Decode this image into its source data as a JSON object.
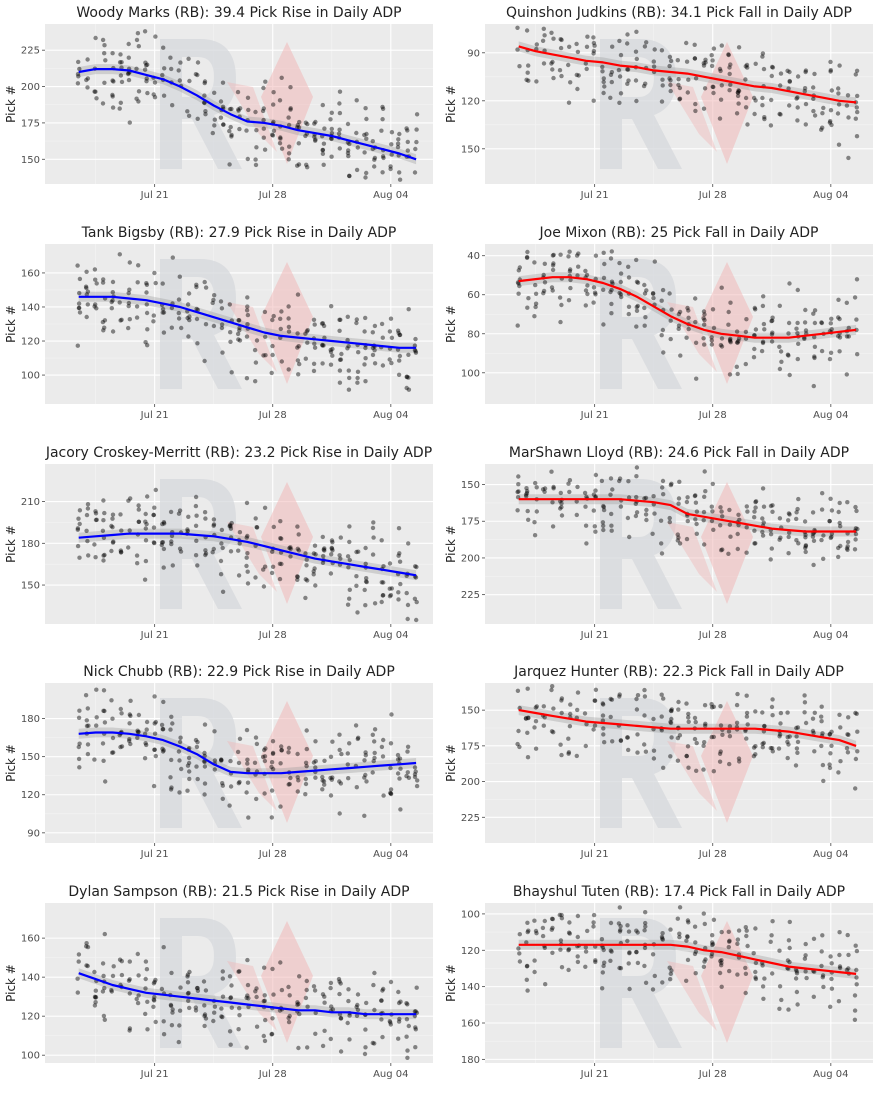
{
  "chart_data": [
    {
      "type": "scatter",
      "title": "Woody Marks (RB): 39.4 Pick Rise in Daily ADP",
      "ylabel": "Pick #",
      "xlabel": "",
      "x_ticks": [
        "Jul 21",
        "Jul 28",
        "Aug 04"
      ],
      "y_ticks": [
        150,
        175,
        200,
        225
      ],
      "ylim": [
        243,
        133
      ],
      "trend": "rise",
      "color": "#0000ff",
      "series": [
        {
          "name": "",
          "x": [
            0,
            2,
            4,
            6,
            8,
            10,
            12,
            14,
            16,
            18,
            20,
            22,
            24,
            26,
            28,
            30,
            32,
            34,
            36,
            38,
            40
          ],
          "y": [
            210,
            212,
            212,
            211,
            208,
            205,
            200,
            194,
            187,
            181,
            176,
            175,
            173,
            170,
            168,
            166,
            163,
            160,
            157,
            154,
            150
          ]
        }
      ]
    },
    {
      "type": "scatter",
      "title": "Quinshon Judkins (RB): 34.1 Pick Fall in Daily ADP",
      "ylabel": "Pick #",
      "xlabel": "",
      "x_ticks": [
        "Jul 21",
        "Jul 28",
        "Aug 04"
      ],
      "y_ticks": [
        90,
        120,
        150
      ],
      "ylim": [
        72,
        172
      ],
      "trend": "fall",
      "color": "#ff0000",
      "series": [
        {
          "name": "",
          "x": [
            0,
            2,
            4,
            6,
            8,
            10,
            12,
            14,
            16,
            18,
            20,
            22,
            24,
            26,
            28,
            30,
            32,
            34,
            36,
            38,
            40
          ],
          "y": [
            86,
            89,
            91,
            93,
            95,
            96,
            98,
            99,
            101,
            102,
            103,
            105,
            107,
            109,
            111,
            112,
            114,
            116,
            118,
            120,
            121
          ]
        }
      ]
    },
    {
      "type": "scatter",
      "title": "Tank Bigsby (RB): 27.9 Pick Rise in Daily ADP",
      "ylabel": "Pick #",
      "xlabel": "",
      "x_ticks": [
        "Jul 21",
        "Jul 28",
        "Aug 04"
      ],
      "y_ticks": [
        100,
        120,
        140,
        160
      ],
      "ylim": [
        177,
        83
      ],
      "trend": "rise",
      "color": "#0000ff",
      "series": [
        {
          "name": "",
          "x": [
            0,
            2,
            4,
            6,
            8,
            10,
            12,
            14,
            16,
            18,
            20,
            22,
            24,
            26,
            28,
            30,
            32,
            34,
            36,
            38,
            40
          ],
          "y": [
            146,
            146,
            146,
            145,
            144,
            142,
            140,
            137,
            134,
            131,
            128,
            125,
            123,
            122,
            121,
            120,
            119,
            118,
            117,
            116,
            116
          ]
        }
      ]
    },
    {
      "type": "scatter",
      "title": "Joe Mixon (RB): 25 Pick Fall in Daily ADP",
      "ylabel": "Pick #",
      "xlabel": "",
      "x_ticks": [
        "Jul 21",
        "Jul 28",
        "Aug 04"
      ],
      "y_ticks": [
        40,
        60,
        80,
        100
      ],
      "ylim": [
        34,
        116
      ],
      "trend": "fall",
      "color": "#ff0000",
      "series": [
        {
          "name": "",
          "x": [
            0,
            2,
            4,
            6,
            8,
            10,
            12,
            14,
            16,
            18,
            20,
            22,
            24,
            26,
            28,
            30,
            32,
            34,
            36,
            38,
            40
          ],
          "y": [
            53,
            52,
            51,
            51,
            52,
            54,
            57,
            61,
            66,
            71,
            75,
            78,
            80,
            81,
            82,
            82,
            82,
            81,
            80,
            79,
            78
          ]
        }
      ]
    },
    {
      "type": "scatter",
      "title": "Jacory Croskey-Merritt (RB): 23.2 Pick Rise in Daily ADP",
      "ylabel": "Pick #",
      "xlabel": "",
      "x_ticks": [
        "Jul 21",
        "Jul 28",
        "Aug 04"
      ],
      "y_ticks": [
        150,
        180,
        210
      ],
      "ylim": [
        237,
        122
      ],
      "trend": "rise",
      "color": "#0000ff",
      "series": [
        {
          "name": "",
          "x": [
            0,
            2,
            4,
            6,
            8,
            10,
            12,
            14,
            16,
            18,
            20,
            22,
            24,
            26,
            28,
            30,
            32,
            34,
            36,
            38,
            40
          ],
          "y": [
            184,
            185,
            186,
            187,
            187,
            187,
            187,
            186,
            185,
            183,
            181,
            178,
            175,
            172,
            169,
            167,
            165,
            163,
            161,
            159,
            157
          ]
        }
      ]
    },
    {
      "type": "scatter",
      "title": "MarShawn Lloyd (RB): 24.6 Pick Fall in Daily ADP",
      "ylabel": "Pick #",
      "xlabel": "",
      "x_ticks": [
        "Jul 21",
        "Jul 28",
        "Aug 04"
      ],
      "y_ticks": [
        150,
        175,
        200,
        225
      ],
      "ylim": [
        136,
        245
      ],
      "trend": "fall",
      "color": "#ff0000",
      "series": [
        {
          "name": "",
          "x": [
            0,
            2,
            4,
            6,
            8,
            10,
            12,
            14,
            16,
            18,
            20,
            22,
            24,
            26,
            28,
            30,
            32,
            34,
            36,
            38,
            40
          ],
          "y": [
            160,
            160,
            160,
            160,
            160,
            160,
            160,
            161,
            162,
            164,
            170,
            172,
            174,
            176,
            178,
            180,
            181,
            182,
            182,
            182,
            182
          ]
        }
      ]
    },
    {
      "type": "scatter",
      "title": "Nick Chubb (RB): 22.9 Pick Rise in Daily ADP",
      "ylabel": "Pick #",
      "xlabel": "",
      "x_ticks": [
        "Jul 21",
        "Jul 28",
        "Aug 04"
      ],
      "y_ticks": [
        90,
        120,
        150,
        180
      ],
      "ylim": [
        208,
        82
      ],
      "trend": "rise",
      "color": "#0000ff",
      "series": [
        {
          "name": "",
          "x": [
            0,
            2,
            4,
            6,
            8,
            10,
            12,
            14,
            16,
            18,
            20,
            22,
            24,
            26,
            28,
            30,
            32,
            34,
            36,
            38,
            40
          ],
          "y": [
            168,
            169,
            169,
            168,
            166,
            163,
            158,
            152,
            144,
            138,
            137,
            137,
            137,
            138,
            139,
            140,
            141,
            142,
            143,
            144,
            145
          ]
        }
      ]
    },
    {
      "type": "scatter",
      "title": "Jarquez Hunter (RB): 22.3 Pick Fall in Daily ADP",
      "ylabel": "Pick #",
      "xlabel": "",
      "x_ticks": [
        "Jul 21",
        "Jul 28",
        "Aug 04"
      ],
      "y_ticks": [
        150,
        175,
        200,
        225
      ],
      "ylim": [
        131,
        243
      ],
      "trend": "fall",
      "color": "#ff0000",
      "series": [
        {
          "name": "",
          "x": [
            0,
            2,
            4,
            6,
            8,
            10,
            12,
            14,
            16,
            18,
            20,
            22,
            24,
            26,
            28,
            30,
            32,
            34,
            36,
            38,
            40
          ],
          "y": [
            150,
            152,
            154,
            156,
            158,
            159,
            160,
            161,
            162,
            163,
            163,
            163,
            163,
            163,
            163,
            164,
            165,
            167,
            169,
            171,
            175
          ]
        }
      ]
    },
    {
      "type": "scatter",
      "title": "Dylan Sampson (RB): 21.5 Pick Rise in Daily ADP",
      "ylabel": "Pick #",
      "xlabel": "",
      "x_ticks": [
        "Jul 21",
        "Jul 28",
        "Aug 04"
      ],
      "y_ticks": [
        100,
        120,
        140,
        160
      ],
      "ylim": [
        178,
        96
      ],
      "trend": "rise",
      "color": "#0000ff",
      "series": [
        {
          "name": "",
          "x": [
            0,
            2,
            4,
            6,
            8,
            10,
            12,
            14,
            16,
            18,
            20,
            22,
            24,
            26,
            28,
            30,
            32,
            34,
            36,
            38,
            40
          ],
          "y": [
            142,
            139,
            136,
            134,
            132,
            131,
            130,
            129,
            128,
            127,
            126,
            125,
            124,
            123,
            123,
            122,
            122,
            121,
            121,
            121,
            121
          ]
        }
      ]
    },
    {
      "type": "scatter",
      "title": "Bhayshul Tuten (RB): 17.4 Pick Fall in Daily ADP",
      "ylabel": "Pick #",
      "xlabel": "",
      "x_ticks": [
        "Jul 21",
        "Jul 28",
        "Aug 04"
      ],
      "y_ticks": [
        100,
        120,
        140,
        160,
        180
      ],
      "ylim": [
        94,
        182
      ],
      "trend": "fall",
      "color": "#ff0000",
      "series": [
        {
          "name": "",
          "x": [
            0,
            2,
            4,
            6,
            8,
            10,
            12,
            14,
            16,
            18,
            20,
            22,
            24,
            26,
            28,
            30,
            32,
            34,
            36,
            38,
            40
          ],
          "y": [
            117,
            117,
            117,
            117,
            117,
            117,
            117,
            117,
            117,
            117,
            118,
            120,
            121,
            123,
            125,
            127,
            129,
            130,
            131,
            132,
            133
          ]
        }
      ]
    }
  ]
}
